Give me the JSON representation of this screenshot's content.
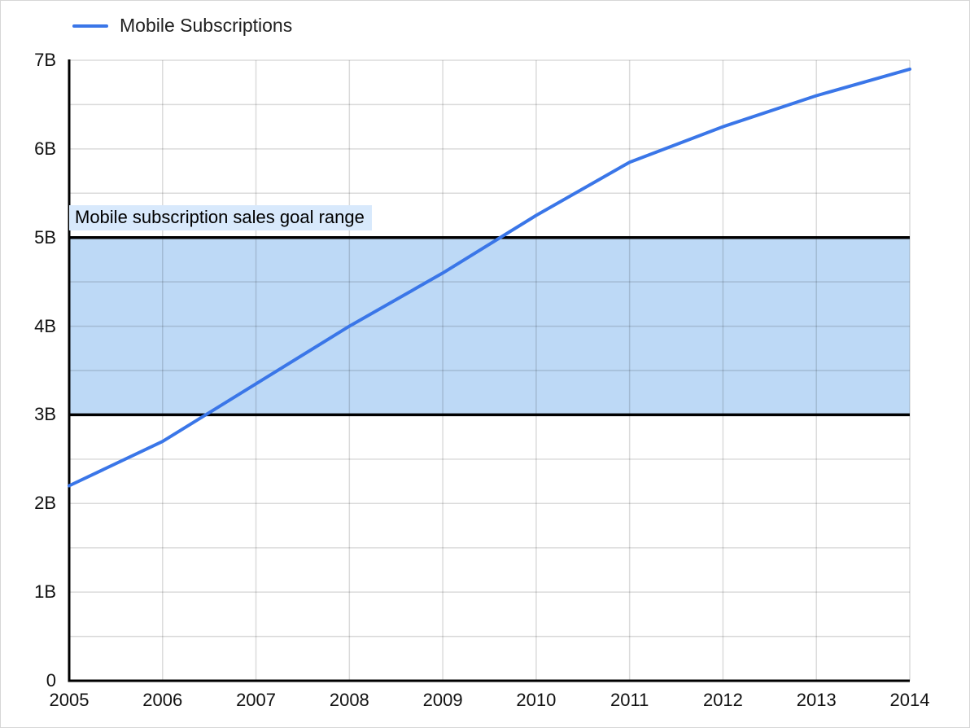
{
  "legend": {
    "label": "Mobile Subscriptions"
  },
  "colors": {
    "series_line": "#3a76e8",
    "band_fill": "#bdd9f6",
    "band_border": "#000000",
    "band_label_bg": "#d8e9fc",
    "gridline": "rgba(0,0,0,0.14)",
    "axis": "#000000",
    "tick_text": "#111111"
  },
  "chart_data": {
    "type": "line",
    "title": "",
    "xlabel": "",
    "ylabel": "",
    "x": [
      2005,
      2006,
      2007,
      2008,
      2009,
      2010,
      2011,
      2012,
      2013,
      2014
    ],
    "x_tick_labels": [
      "2005",
      "2006",
      "2007",
      "2008",
      "2009",
      "2010",
      "2011",
      "2012",
      "2013",
      "2014"
    ],
    "series": [
      {
        "name": "Mobile Subscriptions",
        "values": [
          2.2,
          2.7,
          3.35,
          4.0,
          4.6,
          5.25,
          5.85,
          6.25,
          6.6,
          6.9
        ]
      }
    ],
    "ylim": [
      0,
      7
    ],
    "y_tick_values": [
      0,
      1,
      2,
      3,
      4,
      5,
      6,
      7
    ],
    "y_tick_labels": [
      "0",
      "1B",
      "2B",
      "3B",
      "4B",
      "5B",
      "6B",
      "7B"
    ],
    "grid": {
      "horizontal_step": 0.5,
      "vertical_every_year": true
    },
    "legend_position": "top-left",
    "band": {
      "from": 3,
      "to": 5,
      "label": "Mobile subscription sales goal range"
    }
  }
}
